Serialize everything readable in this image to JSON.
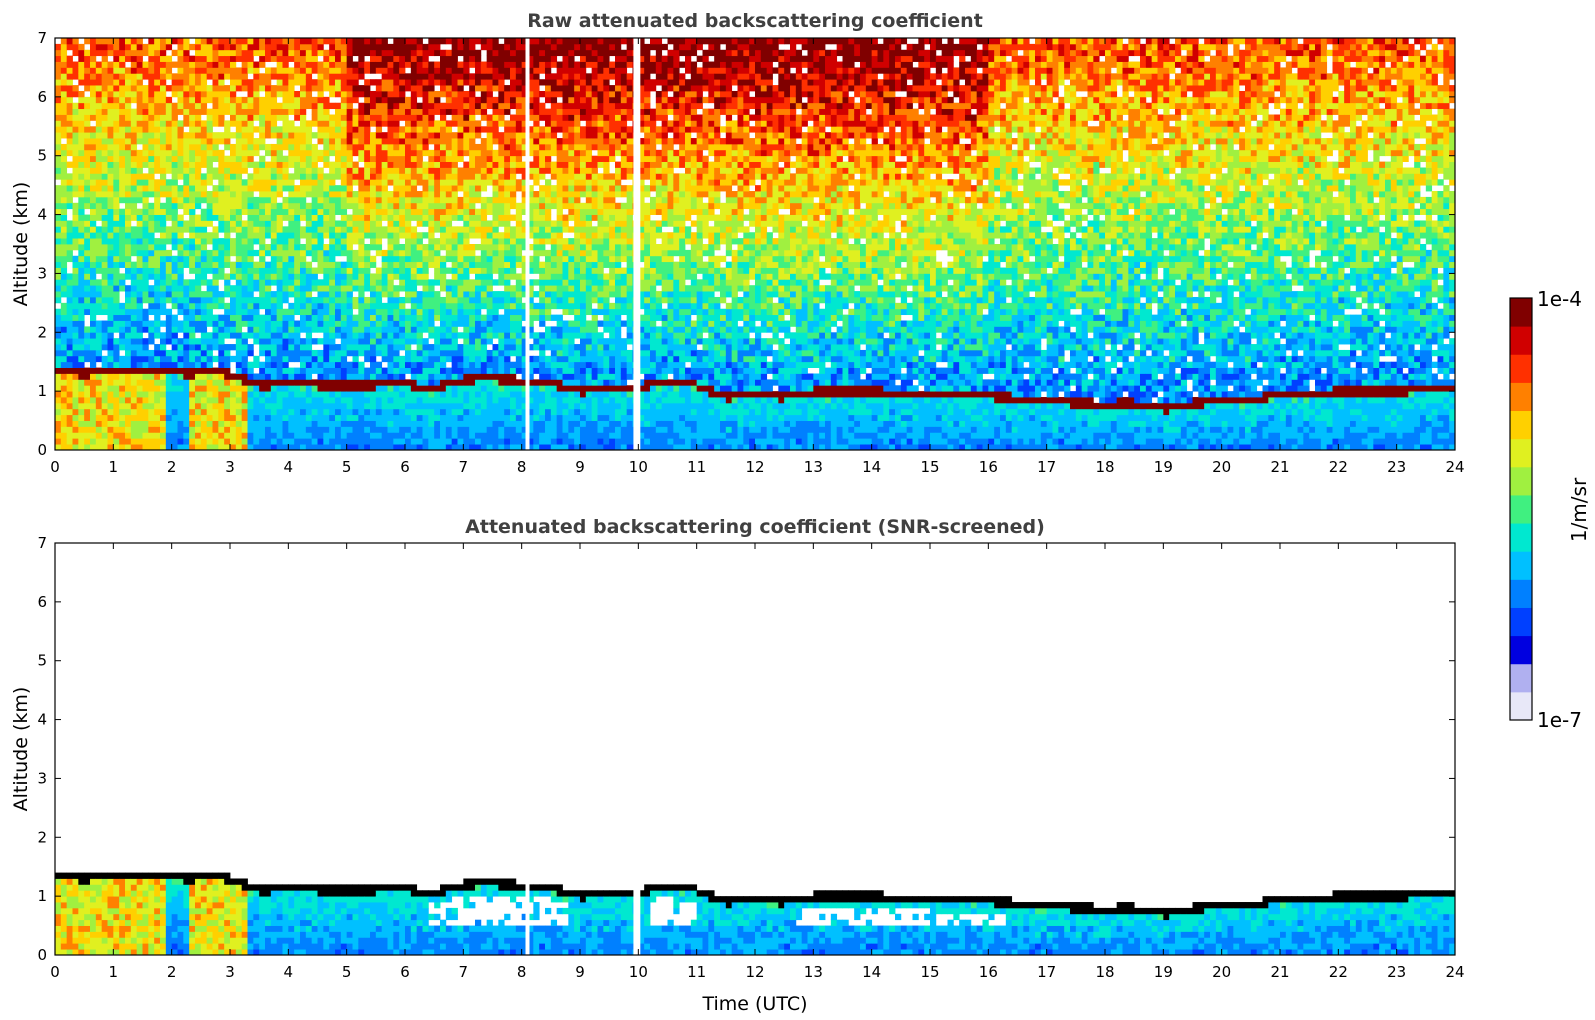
{
  "colors": {
    "colormap": [
      "#e8e8f8",
      "#b0b0f0",
      "#0000e0",
      "#0040ff",
      "#0080ff",
      "#00c0ff",
      "#00e8d0",
      "#40f080",
      "#a0f040",
      "#e0f020",
      "#ffd000",
      "#ff8000",
      "#ff3000",
      "#d00000",
      "#800000"
    ],
    "axis": "#000000",
    "title_text": "#404040",
    "layer_black": "#000000"
  },
  "chart_data": [
    {
      "type": "heatmap",
      "title": "Raw attenuated backscattering coefficient",
      "xlabel": "",
      "ylabel": "Altitude (km)",
      "xlim": [
        0,
        24
      ],
      "ylim": [
        0,
        7
      ],
      "xticks": [
        "0",
        "1",
        "2",
        "3",
        "4",
        "5",
        "6",
        "7",
        "8",
        "9",
        "10",
        "11",
        "12",
        "13",
        "14",
        "15",
        "16",
        "17",
        "18",
        "19",
        "20",
        "21",
        "22",
        "23",
        "24"
      ],
      "yticks": [
        "0",
        "1",
        "2",
        "3",
        "4",
        "5",
        "6",
        "7"
      ],
      "screened": false,
      "cloud_base_km": {
        "time": [
          0,
          0.5,
          1,
          1.5,
          1.9,
          2.3,
          2.7,
          3.0,
          3.5,
          4,
          5,
          6,
          6.5,
          7,
          7.5,
          8,
          8.5,
          9,
          9.5,
          10,
          10.5,
          11,
          11.5,
          12,
          12.5,
          13,
          13.5,
          14,
          15,
          16,
          17,
          17.5,
          18,
          18.5,
          19,
          19.5,
          20,
          20.3,
          21,
          21.5,
          22,
          23,
          24
        ],
        "altitude": [
          1.35,
          1.3,
          1.35,
          1.38,
          1.35,
          1.3,
          1.35,
          1.3,
          1.1,
          1.12,
          1.1,
          1.12,
          1.05,
          1.2,
          1.22,
          1.18,
          1.15,
          1.0,
          1.05,
          1.05,
          1.2,
          1.1,
          0.9,
          0.95,
          0.9,
          1.0,
          1.0,
          1.0,
          0.95,
          0.92,
          0.85,
          0.8,
          0.78,
          0.8,
          0.7,
          0.8,
          0.82,
          0.82,
          0.95,
          0.95,
          1.0,
          1.0,
          1.05
        ]
      },
      "data_gaps_hours": [
        8.1,
        9.95,
        10.0
      ],
      "colorbar": {
        "min_label": "1e-7",
        "max_label": "1e-4",
        "label": "1/m/sr",
        "scale": "log"
      }
    },
    {
      "type": "heatmap",
      "title": "Attenuated backscattering coefficient (SNR-screened)",
      "xlabel": "Time (UTC)",
      "ylabel": "Altitude (km)",
      "xlim": [
        0,
        24
      ],
      "ylim": [
        0,
        7
      ],
      "xticks": [
        "0",
        "1",
        "2",
        "3",
        "4",
        "5",
        "6",
        "7",
        "8",
        "9",
        "10",
        "11",
        "12",
        "13",
        "14",
        "15",
        "16",
        "17",
        "18",
        "19",
        "20",
        "21",
        "22",
        "23",
        "24"
      ],
      "yticks": [
        "0",
        "1",
        "2",
        "3",
        "4",
        "5",
        "6",
        "7"
      ],
      "screened": true,
      "screened_gaps_hours": [
        [
          6.4,
          8.8
        ],
        [
          10.2,
          11.0
        ],
        [
          12.7,
          16.3
        ]
      ]
    }
  ],
  "colorbar": {
    "top_label": "1e-4",
    "bottom_label": "1e-7",
    "unit_label": "1/m/sr"
  }
}
